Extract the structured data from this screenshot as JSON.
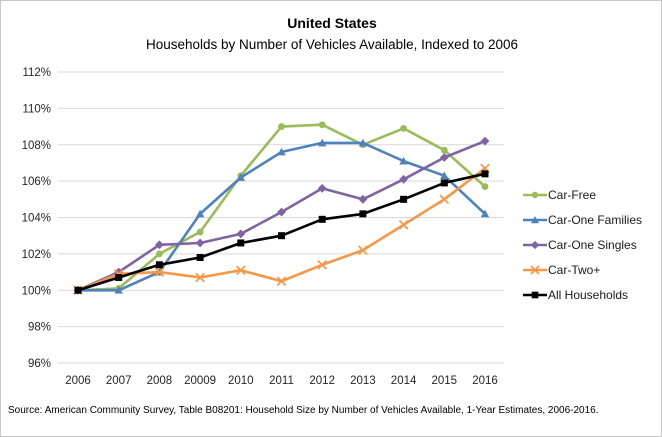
{
  "header": {
    "title": "United States",
    "subtitle": "Households  by Number  of Vehicles Available, Indexed to 2006"
  },
  "footer": {
    "source": "Source: American Community Survey,  Table B08201: Household  Size by Number of Vehicles Available, 1-Year Estimates, 2006-2016."
  },
  "chart_data": {
    "type": "line",
    "title": "United States",
    "subtitle": "Households by Number of Vehicles Available, Indexed to 2006",
    "xlabel": "",
    "ylabel": "",
    "ylim": [
      96,
      112
    ],
    "grid": true,
    "legend_position": "right",
    "y_ticks": [
      "112%",
      "110%",
      "108%",
      "106%",
      "104%",
      "102%",
      "100%",
      "98%",
      "96%"
    ],
    "categories": [
      "2006",
      "2007",
      "2008",
      "20009",
      "2010",
      "2011",
      "2012",
      "2013",
      "2014",
      "2015",
      "2016"
    ],
    "series": [
      {
        "name": "Car-Free",
        "color": "#9BBB59",
        "marker": "circle",
        "values": [
          100.0,
          100.1,
          102.0,
          103.2,
          106.3,
          109.0,
          109.1,
          108.0,
          108.9,
          107.7,
          105.7
        ]
      },
      {
        "name": "Car-One Families",
        "color": "#4F81BD",
        "marker": "triangle",
        "values": [
          100.0,
          100.0,
          101.0,
          104.2,
          106.2,
          107.6,
          108.1,
          108.1,
          107.1,
          106.3,
          104.2
        ]
      },
      {
        "name": "Car-One Singles",
        "color": "#8064A2",
        "marker": "diamond",
        "values": [
          100.0,
          101.0,
          102.5,
          102.6,
          103.1,
          104.3,
          105.6,
          105.0,
          106.1,
          107.3,
          108.2
        ]
      },
      {
        "name": "Car-Two+",
        "color": "#F79646",
        "marker": "x",
        "values": [
          100.0,
          100.9,
          101.0,
          100.7,
          101.1,
          100.5,
          101.4,
          102.2,
          103.6,
          105.0,
          106.7
        ]
      },
      {
        "name": "All Households",
        "color": "#000000",
        "marker": "square",
        "values": [
          100.0,
          100.7,
          101.4,
          101.8,
          102.6,
          103.0,
          103.9,
          104.2,
          105.0,
          105.9,
          106.4
        ]
      }
    ],
    "gridline_color": "#D9D9D9"
  }
}
